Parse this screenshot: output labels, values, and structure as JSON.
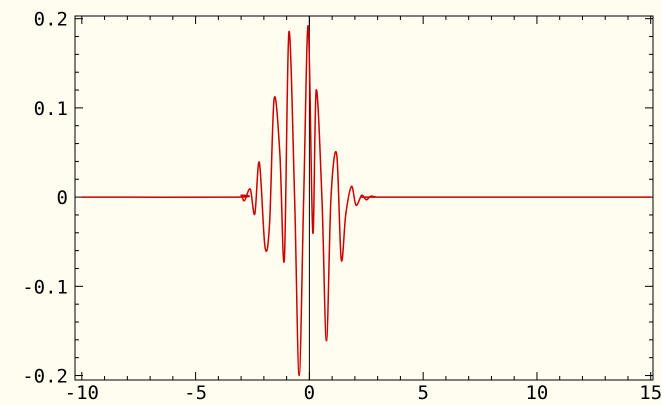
{
  "chart_data": {
    "type": "line",
    "title": "",
    "xlabel": "",
    "ylabel": "",
    "xlim": [
      -10.3,
      15.1
    ],
    "ylim": [
      -0.205,
      0.203
    ],
    "grid": false,
    "x_ticks": [
      {
        "value": -10,
        "label": "-10"
      },
      {
        "value": -5,
        "label": "-5"
      },
      {
        "value": 0,
        "label": "0"
      },
      {
        "value": 5,
        "label": "5"
      },
      {
        "value": 10,
        "label": "10"
      },
      {
        "value": 15,
        "label": "15"
      }
    ],
    "y_ticks": [
      {
        "value": 0.2,
        "label": "0.2"
      },
      {
        "value": 0.1,
        "label": "0.1"
      },
      {
        "value": 0,
        "label": "0"
      },
      {
        "value": -0.1,
        "label": "-0.1"
      },
      {
        "value": -0.2,
        "label": "-0.2"
      }
    ],
    "series": [
      {
        "color": "#cc0000",
        "x": [
          -10,
          -3.2,
          -3.0,
          -2.85,
          -2.6,
          -2.4,
          -2.2,
          -1.95,
          -1.75,
          -1.55,
          -1.3,
          -1.1,
          -0.9,
          -0.65,
          -0.45,
          -0.25,
          -0.05,
          0.15,
          0.3,
          0.55,
          0.75,
          0.95,
          1.2,
          1.4,
          1.6,
          1.85,
          2.05,
          2.3,
          2.5,
          2.7,
          2.95,
          3.2,
          15
        ],
        "y": [
          0,
          0,
          0.002,
          -0.004,
          0.009,
          -0.019,
          0.039,
          -0.056,
          -0.03,
          0.11,
          0.05,
          -0.07,
          0.185,
          0.0,
          -0.2,
          0.0,
          0.192,
          -0.04,
          0.12,
          0.0,
          -0.161,
          0.0,
          0.048,
          -0.07,
          -0.019,
          0.012,
          -0.009,
          0.002,
          -0.003,
          0.001,
          0,
          0,
          0
        ]
      }
    ]
  }
}
